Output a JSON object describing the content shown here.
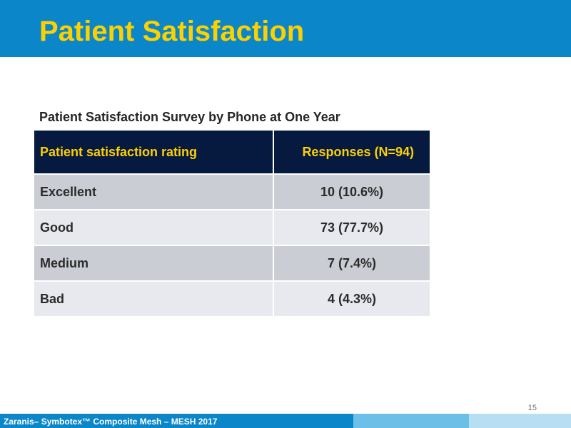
{
  "slide": {
    "title": "Patient Satisfaction",
    "page_number": "15"
  },
  "table": {
    "caption": "Patient Satisfaction Survey by Phone at One Year",
    "headers": [
      "Patient satisfaction rating",
      "Responses (N=94)"
    ],
    "rows": [
      {
        "rating": "Excellent",
        "responses": "10 (10.6%)"
      },
      {
        "rating": "Good",
        "responses": "73 (77.7%)"
      },
      {
        "rating": "Medium",
        "responses": "7 (7.4%)"
      },
      {
        "rating": "Bad",
        "responses": "4 (4.3%)"
      }
    ]
  },
  "footer": {
    "text": "Zaranis– Symbotex™ Composite Mesh – MESH 2017"
  },
  "colors": {
    "header_band": "#0a86c9",
    "title_text": "#fdd000",
    "table_header_bg": "#061a3f",
    "row_dark": "#cbcdd5",
    "row_light": "#e8e9ee",
    "footer_mid": "#6cc0e8",
    "footer_light": "#b7def3"
  }
}
